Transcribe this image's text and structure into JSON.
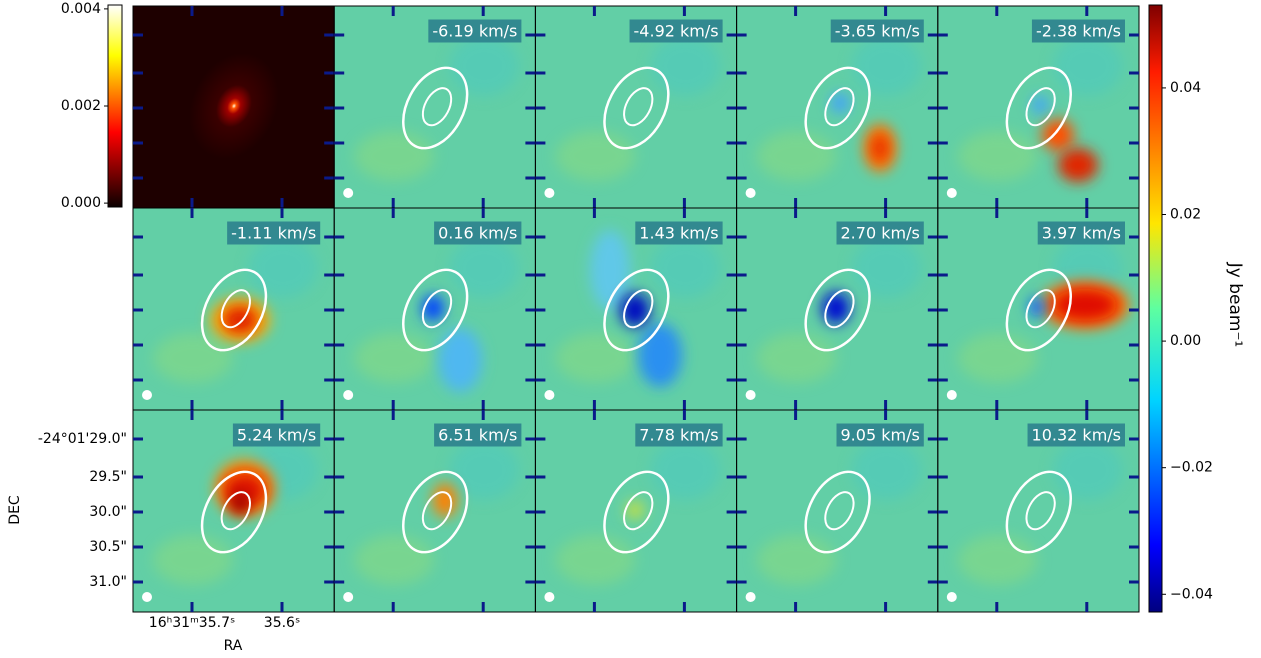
{
  "continuum_colorbar": {
    "lim": [
      -8e-05,
      0.00408
    ],
    "ticks": [
      {
        "value": 0,
        "label": "0.000"
      },
      {
        "value": 0.002,
        "label": "0.002"
      },
      {
        "value": 0.004,
        "label": "0.004"
      }
    ]
  },
  "colorbar": {
    "label": "Jy beam⁻¹",
    "lim": [
      -0.0428,
      0.0531
    ],
    "ticks": [
      {
        "value": -0.04,
        "label": "−0.04"
      },
      {
        "value": -0.02,
        "label": "−0.02"
      },
      {
        "value": 0,
        "label": "0.00"
      },
      {
        "value": 0.02,
        "label": "0.02"
      },
      {
        "value": 0.04,
        "label": "0.04"
      }
    ]
  },
  "channels": [
    "-6.19 km/s",
    "-4.92 km/s",
    "-3.65 km/s",
    "-2.38 km/s",
    "-1.11 km/s",
    "0.16 km/s",
    "1.43 km/s",
    "2.70 km/s",
    "3.97 km/s",
    "5.24 km/s",
    "6.51 km/s",
    "7.78 km/s",
    "9.05 km/s",
    "10.32 km/s"
  ],
  "dec_axis": {
    "label": "DEC",
    "ticks": [
      "-24°01'29.0\"",
      "29.5\"",
      "30.0\"",
      "30.5\"",
      "31.0\""
    ]
  },
  "ra_axis": {
    "label": "RA",
    "ticks": [
      "16ʰ31ᵐ35.7ˢ",
      "35.6ˢ"
    ]
  }
}
